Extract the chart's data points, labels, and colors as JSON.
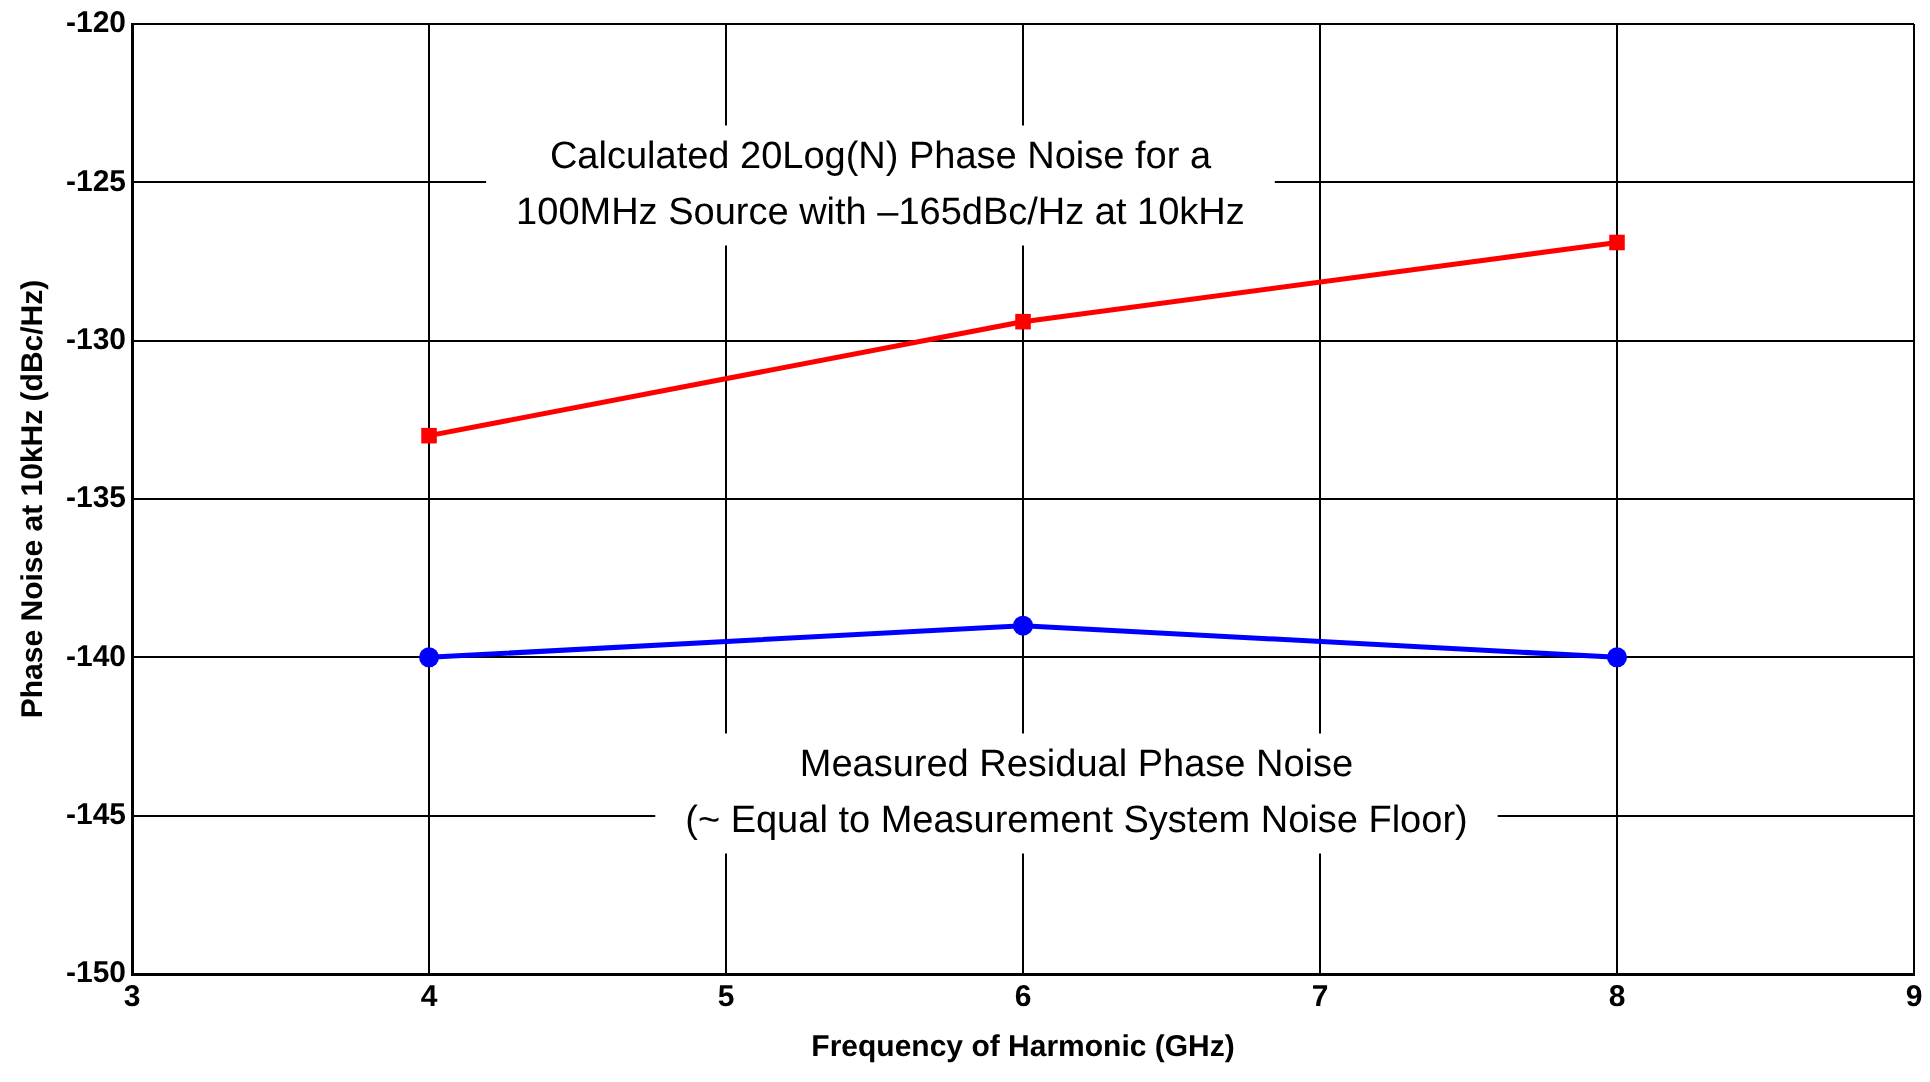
{
  "chart_data": {
    "type": "line",
    "xlabel": "Frequency of Harmonic (GHz)",
    "ylabel": "Phase Noise at 10kHz (dBc/Hz)",
    "xlim": [
      3,
      9
    ],
    "xticks": [
      3,
      4,
      5,
      6,
      7,
      8,
      9
    ],
    "ylim": [
      -150,
      -120
    ],
    "yticks": [
      -150,
      -145,
      -140,
      -135,
      -130,
      -125,
      -120
    ],
    "grid": true,
    "line_style": "solid",
    "series": [
      {
        "name": "Calculated 20Log(N) Phase Noise for a\n100MHz Source with –165dBc/Hz at 10kHz",
        "color": "#ff0000",
        "marker": "square",
        "x": [
          4,
          6,
          8
        ],
        "values": [
          -133,
          -129.4,
          -126.9
        ]
      },
      {
        "name": "Measured Residual Phase Noise\n(~ Equal to Measurement System Noise Floor)",
        "color": "#0000ff",
        "marker": "circle",
        "x": [
          4,
          6,
          8
        ],
        "values": [
          -140,
          -139,
          -140
        ]
      }
    ]
  }
}
